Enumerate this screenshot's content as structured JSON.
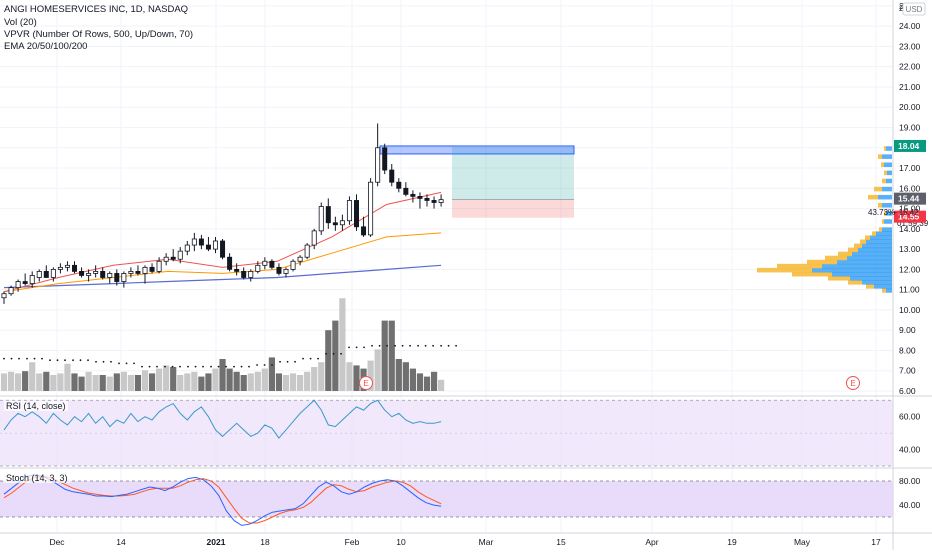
{
  "header": {
    "title": "ANGI HOMESERVICES INC, 1D, NASDAQ",
    "indicators": [
      "Vol (20)",
      "VPVR (Number Of Rows, 500, Up/Down, 70)",
      "EMA 20/50/100/200"
    ],
    "currency": "USD"
  },
  "panes": {
    "rsi_label": "RSI (14, close)",
    "stoch_label": "Stoch (14, 3, 3)"
  },
  "badges": {
    "target": "18.04",
    "last_price": "15.44",
    "countdown": "01:59:39",
    "stop": "14.55",
    "percent_label": "43.73%",
    "percent_price": "15.42",
    "earnings_glyph": "E"
  },
  "colors": {
    "up": "#26a69a",
    "down": "#ef5350",
    "candle_body": "#131722",
    "ema20": "#ef5350",
    "ema50": "#ff9800",
    "ema100": "#5b6bd0",
    "vol_dark": "#707070",
    "vol_light": "#c8c8c8",
    "rsi_line": "#3a99c9",
    "stoch_k": "#2962ff",
    "stoch_d": "#ff5722",
    "pane_fill": "#e5d6fa",
    "target_zone": "#26a69a",
    "stop_zone": "#ef5350",
    "supply_box": "#2962ff",
    "vp_up": "#2196f3",
    "vp_down": "#f7b731"
  },
  "chart_data": [
    {
      "type": "candlestick",
      "x_ticks": [
        "Dec",
        "14",
        "2021",
        "18",
        "Feb",
        "10",
        "Mar",
        "15",
        "Apr",
        "19",
        "May",
        "17"
      ],
      "y_ticks": [
        "6.00",
        "7.00",
        "8.00",
        "9.00",
        "10.00",
        "11.00",
        "12.00",
        "13.00",
        "14.00",
        "15.00",
        "16.00",
        "17.00",
        "18.00",
        "19.00",
        "20.00",
        "21.00",
        "22.00",
        "23.00",
        "24.00",
        "2"
      ],
      "ylim": [
        6,
        25
      ],
      "candles": [
        {
          "o": 10.6,
          "h": 10.9,
          "l": 10.3,
          "c": 10.8
        },
        {
          "o": 10.8,
          "h": 11.2,
          "l": 10.7,
          "c": 11.1
        },
        {
          "o": 11.1,
          "h": 11.5,
          "l": 10.9,
          "c": 11.4
        },
        {
          "o": 11.4,
          "h": 11.8,
          "l": 11.2,
          "c": 11.3
        },
        {
          "o": 11.3,
          "h": 11.9,
          "l": 11.1,
          "c": 11.7
        },
        {
          "o": 11.6,
          "h": 12.0,
          "l": 11.4,
          "c": 11.9
        },
        {
          "o": 11.9,
          "h": 12.2,
          "l": 11.6,
          "c": 11.6
        },
        {
          "o": 11.6,
          "h": 12.1,
          "l": 11.4,
          "c": 12.0
        },
        {
          "o": 12.0,
          "h": 12.3,
          "l": 11.8,
          "c": 12.1
        },
        {
          "o": 12.1,
          "h": 12.4,
          "l": 11.9,
          "c": 12.2
        },
        {
          "o": 12.2,
          "h": 12.4,
          "l": 11.8,
          "c": 11.9
        },
        {
          "o": 11.9,
          "h": 12.1,
          "l": 11.6,
          "c": 11.7
        },
        {
          "o": 11.7,
          "h": 12.0,
          "l": 11.4,
          "c": 11.8
        },
        {
          "o": 11.8,
          "h": 12.2,
          "l": 11.6,
          "c": 11.9
        },
        {
          "o": 11.9,
          "h": 12.1,
          "l": 11.5,
          "c": 11.6
        },
        {
          "o": 11.6,
          "h": 11.9,
          "l": 11.3,
          "c": 11.8
        },
        {
          "o": 11.8,
          "h": 12.0,
          "l": 11.2,
          "c": 11.4
        },
        {
          "o": 11.4,
          "h": 11.9,
          "l": 11.1,
          "c": 11.8
        },
        {
          "o": 11.8,
          "h": 12.1,
          "l": 11.6,
          "c": 11.9
        },
        {
          "o": 11.9,
          "h": 12.2,
          "l": 11.7,
          "c": 11.8
        },
        {
          "o": 11.8,
          "h": 12.2,
          "l": 11.3,
          "c": 12.1
        },
        {
          "o": 12.1,
          "h": 12.3,
          "l": 11.8,
          "c": 11.9
        },
        {
          "o": 11.9,
          "h": 12.6,
          "l": 11.8,
          "c": 12.4
        },
        {
          "o": 12.4,
          "h": 12.8,
          "l": 12.2,
          "c": 12.6
        },
        {
          "o": 12.6,
          "h": 13.0,
          "l": 12.4,
          "c": 12.5
        },
        {
          "o": 12.5,
          "h": 13.1,
          "l": 12.3,
          "c": 12.9
        },
        {
          "o": 12.9,
          "h": 13.4,
          "l": 12.7,
          "c": 13.2
        },
        {
          "o": 13.2,
          "h": 13.8,
          "l": 12.9,
          "c": 13.5
        },
        {
          "o": 13.5,
          "h": 13.7,
          "l": 13.0,
          "c": 13.2
        },
        {
          "o": 13.2,
          "h": 13.6,
          "l": 12.9,
          "c": 13.0
        },
        {
          "o": 13.0,
          "h": 13.6,
          "l": 12.8,
          "c": 13.4
        },
        {
          "o": 13.4,
          "h": 13.5,
          "l": 12.5,
          "c": 12.6
        },
        {
          "o": 12.6,
          "h": 12.8,
          "l": 11.9,
          "c": 12.0
        },
        {
          "o": 12.0,
          "h": 12.3,
          "l": 11.7,
          "c": 11.9
        },
        {
          "o": 11.9,
          "h": 12.1,
          "l": 11.5,
          "c": 11.6
        },
        {
          "o": 11.6,
          "h": 12.0,
          "l": 11.4,
          "c": 11.9
        },
        {
          "o": 11.9,
          "h": 12.4,
          "l": 11.8,
          "c": 12.2
        },
        {
          "o": 12.2,
          "h": 12.6,
          "l": 12.0,
          "c": 12.4
        },
        {
          "o": 12.4,
          "h": 12.5,
          "l": 12.0,
          "c": 12.1
        },
        {
          "o": 12.1,
          "h": 12.3,
          "l": 11.7,
          "c": 11.8
        },
        {
          "o": 11.8,
          "h": 12.1,
          "l": 11.6,
          "c": 12.0
        },
        {
          "o": 12.0,
          "h": 12.5,
          "l": 11.9,
          "c": 12.4
        },
        {
          "o": 12.4,
          "h": 12.7,
          "l": 12.2,
          "c": 12.6
        },
        {
          "o": 12.6,
          "h": 13.3,
          "l": 12.5,
          "c": 13.2
        },
        {
          "o": 13.2,
          "h": 14.0,
          "l": 13.0,
          "c": 13.9
        },
        {
          "o": 13.9,
          "h": 15.3,
          "l": 13.7,
          "c": 15.1
        },
        {
          "o": 15.1,
          "h": 15.5,
          "l": 14.0,
          "c": 14.3
        },
        {
          "o": 14.3,
          "h": 14.6,
          "l": 13.9,
          "c": 14.2
        },
        {
          "o": 14.2,
          "h": 14.7,
          "l": 13.9,
          "c": 14.4
        },
        {
          "o": 14.4,
          "h": 15.6,
          "l": 14.2,
          "c": 15.4
        },
        {
          "o": 15.4,
          "h": 15.7,
          "l": 13.9,
          "c": 14.1
        },
        {
          "o": 14.1,
          "h": 14.6,
          "l": 13.6,
          "c": 13.7
        },
        {
          "o": 13.7,
          "h": 16.5,
          "l": 13.6,
          "c": 16.3
        },
        {
          "o": 16.3,
          "h": 19.2,
          "l": 16.1,
          "c": 18.0
        },
        {
          "o": 18.0,
          "h": 18.2,
          "l": 16.7,
          "c": 16.9
        },
        {
          "o": 16.9,
          "h": 17.2,
          "l": 16.1,
          "c": 16.3
        },
        {
          "o": 16.3,
          "h": 16.5,
          "l": 15.8,
          "c": 16.0
        },
        {
          "o": 16.0,
          "h": 16.3,
          "l": 15.6,
          "c": 15.7
        },
        {
          "o": 15.7,
          "h": 15.9,
          "l": 15.3,
          "c": 15.6
        },
        {
          "o": 15.6,
          "h": 15.8,
          "l": 15.0,
          "c": 15.5
        },
        {
          "o": 15.5,
          "h": 15.7,
          "l": 15.1,
          "c": 15.4
        },
        {
          "o": 15.4,
          "h": 15.6,
          "l": 15.0,
          "c": 15.3
        },
        {
          "o": 15.3,
          "h": 15.7,
          "l": 15.1,
          "c": 15.44
        }
      ],
      "ema20": [
        10.9,
        11.6,
        12.2,
        12.5,
        12.1,
        12.4,
        13.6,
        15.2,
        15.8
      ],
      "ema50": [
        10.9,
        11.3,
        11.6,
        11.9,
        11.8,
        12.0,
        12.8,
        13.6,
        13.8
      ],
      "ema100": [
        11.1,
        11.2,
        11.3,
        11.4,
        11.5,
        11.6,
        11.8,
        12.0,
        12.2
      ],
      "volume_ratio": [
        0.55,
        0.6,
        0.55,
        0.62,
        0.9,
        0.55,
        0.6,
        0.5,
        0.55,
        0.85,
        0.55,
        0.45,
        0.6,
        0.5,
        0.5,
        0.45,
        0.55,
        0.6,
        0.5,
        0.5,
        0.65,
        0.55,
        0.7,
        0.8,
        0.75,
        0.5,
        0.55,
        0.6,
        0.45,
        0.55,
        0.7,
        1.0,
        0.7,
        0.6,
        0.5,
        0.55,
        0.6,
        0.7,
        1.05,
        0.55,
        0.5,
        0.55,
        0.5,
        0.6,
        0.75,
        0.9,
        1.9,
        2.2,
        2.9,
        0.9,
        0.8,
        0.7,
        0.95,
        1.3,
        2.2,
        2.2,
        1.0,
        0.9,
        0.7,
        0.55,
        0.45,
        0.6,
        0.35
      ],
      "volume_ma_ratio": [
        0.95,
        0.95,
        0.9,
        0.9,
        0.85,
        0.8,
        0.7,
        0.7,
        0.7,
        0.7,
        0.7,
        0.75,
        0.85,
        0.95,
        1.1,
        1.3,
        1.35,
        1.35,
        1.35,
        1.35
      ],
      "vp_target_price": 18.04,
      "vp_stop_price": 14.55,
      "entry_price": 15.44
    },
    {
      "type": "line",
      "name": "RSI (14, close)",
      "y_ticks": [
        "60.00",
        "40.00"
      ],
      "ylim": [
        30,
        72
      ],
      "bands": [
        70,
        30
      ],
      "values": [
        52,
        58,
        62,
        60,
        63,
        60,
        56,
        62,
        58,
        55,
        60,
        57,
        62,
        56,
        60,
        54,
        58,
        56,
        62,
        57,
        60,
        58,
        63,
        66,
        68,
        62,
        58,
        63,
        66,
        60,
        52,
        48,
        52,
        56,
        52,
        48,
        50,
        55,
        53,
        47,
        52,
        57,
        62,
        66,
        70,
        64,
        55,
        54,
        58,
        62,
        66,
        64,
        68,
        70,
        64,
        60,
        62,
        58,
        56,
        57,
        56,
        56,
        57
      ]
    },
    {
      "type": "line",
      "name": "Stoch (14, 3, 3)",
      "y_ticks": [
        "80.00",
        "40.00"
      ],
      "ylim": [
        -5,
        100
      ],
      "bands": [
        80,
        20
      ],
      "k": [
        58,
        68,
        78,
        88,
        90,
        88,
        82,
        74,
        66,
        62,
        60,
        58,
        55,
        55,
        54,
        56,
        58,
        62,
        66,
        70,
        68,
        64,
        70,
        78,
        84,
        86,
        82,
        72,
        56,
        30,
        14,
        6,
        8,
        14,
        22,
        28,
        30,
        32,
        34,
        42,
        56,
        70,
        78,
        72,
        62,
        58,
        62,
        70,
        76,
        80,
        82,
        80,
        72,
        62,
        52,
        44,
        40,
        38
      ],
      "d": [
        52,
        60,
        70,
        80,
        86,
        88,
        86,
        80,
        74,
        68,
        64,
        60,
        58,
        56,
        55,
        55,
        56,
        58,
        62,
        66,
        68,
        68,
        68,
        72,
        78,
        82,
        84,
        80,
        70,
        52,
        34,
        18,
        10,
        10,
        14,
        20,
        26,
        30,
        32,
        36,
        44,
        56,
        68,
        74,
        72,
        66,
        62,
        64,
        70,
        74,
        78,
        80,
        78,
        72,
        62,
        54,
        48,
        42
      ]
    }
  ]
}
